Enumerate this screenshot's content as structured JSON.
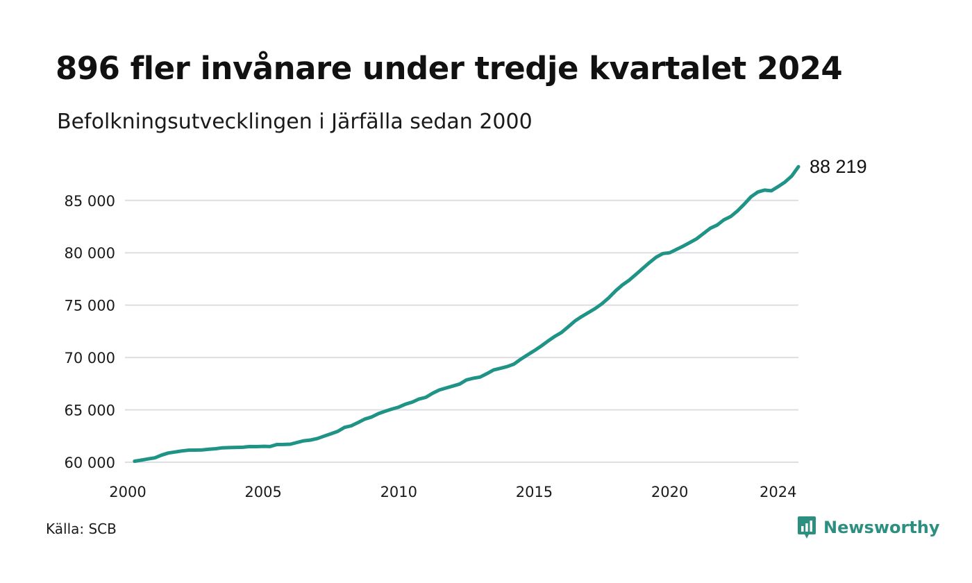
{
  "title": "896 fler invånare under tredje kvartalet 2024",
  "subtitle": "Befolkningsutvecklingen i Järfälla sedan 2000",
  "source": "Källa: SCB",
  "brand": {
    "name": "Newsworthy",
    "icon": "newsworthy-logo-icon"
  },
  "colors": {
    "line": "#1f9385",
    "grid": "#dddde3",
    "text": "#111111",
    "brand": "#2d8f80"
  },
  "chart_data": {
    "type": "line",
    "title": "896 fler invånare under tredje kvartalet 2024",
    "subtitle": "Befolkningsutvecklingen i Järfälla sedan 2000",
    "xlabel": "",
    "ylabel": "",
    "xlim": [
      2000,
      2024.75
    ],
    "ylim": [
      60000,
      88500
    ],
    "grid": true,
    "x_ticks": [
      2000,
      2005,
      2010,
      2015,
      2020,
      2024
    ],
    "x_tick_labels": [
      "2000",
      "2005",
      "2010",
      "2015",
      "2020",
      "2024"
    ],
    "y_ticks": [
      60000,
      65000,
      70000,
      75000,
      80000,
      85000
    ],
    "y_tick_labels": [
      "60 000",
      "65 000",
      "70 000",
      "75 000",
      "80 000",
      "85 000"
    ],
    "end_label": "88 219",
    "series": [
      {
        "x": [
          2000.25,
          2000.5,
          2000.75,
          2001,
          2001.25,
          2001.5,
          2001.75,
          2002,
          2002.25,
          2002.5,
          2002.75,
          2003,
          2003.25,
          2003.5,
          2003.75,
          2004,
          2004.25,
          2004.5,
          2004.75,
          2005,
          2005.25,
          2005.5,
          2005.75,
          2006,
          2006.25,
          2006.5,
          2006.75,
          2007,
          2007.25,
          2007.5,
          2007.75,
          2008,
          2008.25,
          2008.5,
          2008.75,
          2009,
          2009.25,
          2009.5,
          2009.75,
          2010,
          2010.25,
          2010.5,
          2010.75,
          2011,
          2011.25,
          2011.5,
          2011.75,
          2012,
          2012.25,
          2012.5,
          2012.75,
          2013,
          2013.25,
          2013.5,
          2013.75,
          2014,
          2014.25,
          2014.5,
          2014.75,
          2015,
          2015.25,
          2015.5,
          2015.75,
          2016,
          2016.25,
          2016.5,
          2016.75,
          2017,
          2017.25,
          2017.5,
          2017.75,
          2018,
          2018.25,
          2018.5,
          2018.75,
          2019,
          2019.25,
          2019.5,
          2019.75,
          2020,
          2020.25,
          2020.5,
          2020.75,
          2021,
          2021.25,
          2021.5,
          2021.75,
          2022,
          2022.25,
          2022.5,
          2022.75,
          2023,
          2023.25,
          2023.5,
          2023.75,
          2024,
          2024.25,
          2024.5,
          2024.75
        ],
        "values": [
          60100,
          60200,
          60320,
          60420,
          60680,
          60880,
          60980,
          61080,
          61150,
          61160,
          61180,
          61240,
          61290,
          61380,
          61400,
          61420,
          61430,
          61500,
          61490,
          61520,
          61500,
          61690,
          61700,
          61720,
          61890,
          62050,
          62120,
          62270,
          62500,
          62720,
          62950,
          63330,
          63480,
          63800,
          64120,
          64320,
          64640,
          64870,
          65080,
          65260,
          65550,
          65740,
          66040,
          66200,
          66590,
          66900,
          67090,
          67280,
          67470,
          67860,
          68020,
          68130,
          68460,
          68810,
          68970,
          69130,
          69370,
          69830,
          70250,
          70650,
          71080,
          71560,
          72000,
          72380,
          72920,
          73480,
          73910,
          74290,
          74680,
          75140,
          75700,
          76360,
          76920,
          77380,
          77930,
          78500,
          79060,
          79580,
          79930,
          80000,
          80330,
          80640,
          80990,
          81350,
          81850,
          82350,
          82650,
          83150,
          83460,
          84000,
          84640,
          85350,
          85800,
          85990,
          85920,
          86320,
          86750,
          87323,
          88219
        ]
      }
    ]
  }
}
